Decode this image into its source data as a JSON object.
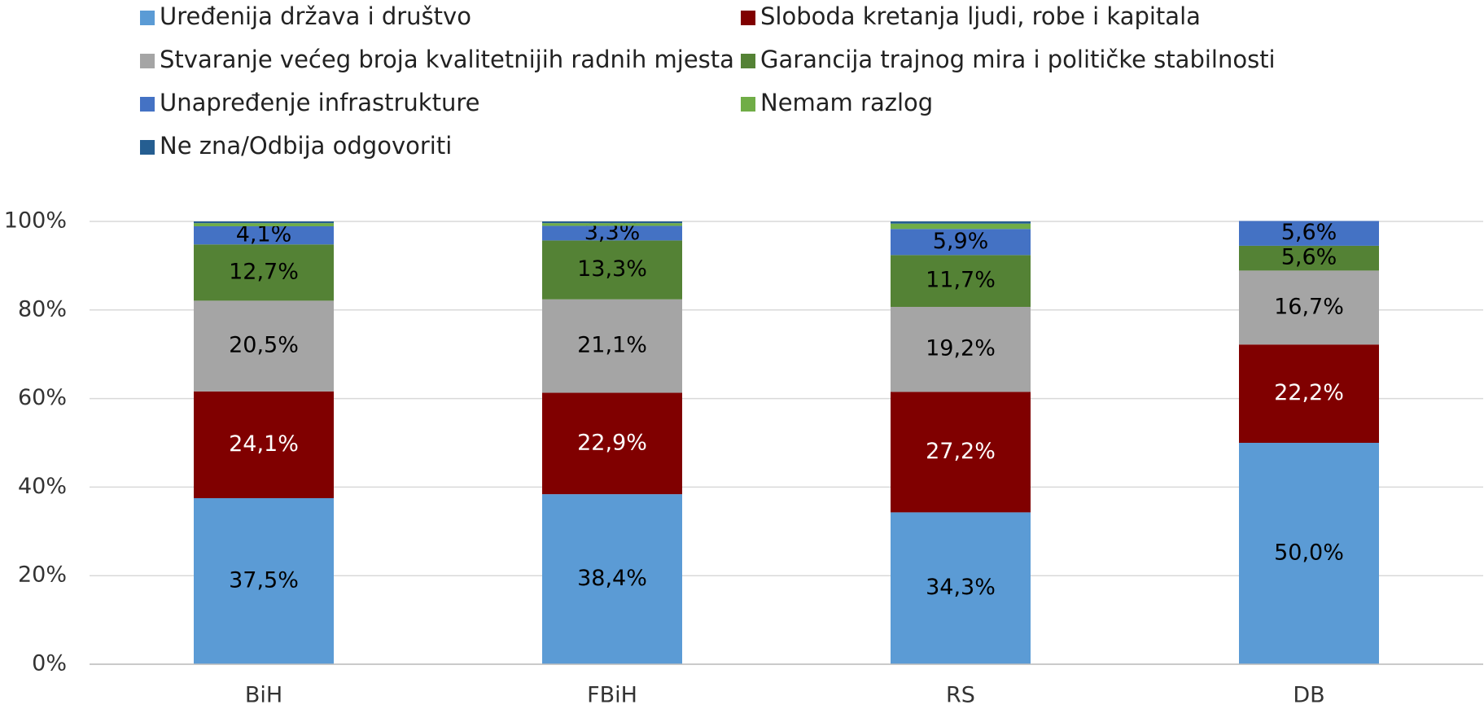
{
  "chart_data": {
    "type": "stacked_bar",
    "categories": [
      "BiH",
      "FBiH",
      "RS",
      "DB"
    ],
    "series": [
      {
        "name": "Uređenija država i društvo",
        "color": "#5b9bd5",
        "values": [
          37.5,
          38.4,
          34.3,
          50.0
        ],
        "value_labels": [
          "37,5%",
          "38,4%",
          "34,3%",
          "50,0%"
        ]
      },
      {
        "name": "Sloboda kretanja ljudi, robe i kapitala",
        "color": "#800000",
        "values": [
          24.1,
          22.9,
          27.2,
          22.2
        ],
        "value_labels": [
          "24,1%",
          "22,9%",
          "27,2%",
          "22,2%"
        ]
      },
      {
        "name": "Stvaranje većeg broja kvalitetnijih radnih mjesta",
        "color": "#a5a5a5",
        "values": [
          20.5,
          21.1,
          19.2,
          16.7
        ],
        "value_labels": [
          "20,5%",
          "21,1%",
          "19,2%",
          "16,7%"
        ]
      },
      {
        "name": "Garancija trajnog mira i političke stabilnosti",
        "color": "#548235",
        "values": [
          12.7,
          13.3,
          11.7,
          5.6
        ],
        "value_labels": [
          "12,7%",
          "13,3%",
          "11,7%",
          "5,6%"
        ]
      },
      {
        "name": "Unapređenje infrastrukture",
        "color": "#4472c4",
        "values": [
          4.1,
          3.3,
          5.9,
          5.6
        ],
        "value_labels": [
          "4,1%",
          "3,3%",
          "5,9%",
          "5,6%"
        ]
      },
      {
        "name": "Nemam razlog",
        "color": "#70ad47",
        "values": [
          0.7,
          0.6,
          1.2,
          0
        ],
        "value_labels": [
          null,
          null,
          null,
          null
        ]
      },
      {
        "name": "Ne zna/Odbija odgovoriti",
        "color": "#255e91",
        "values": [
          0.4,
          0.4,
          0.5,
          0
        ],
        "value_labels": [
          null,
          null,
          null,
          null
        ]
      }
    ],
    "ylim": [
      0,
      100
    ],
    "yticks": [
      {
        "value": 0,
        "label": "0%"
      },
      {
        "value": 20,
        "label": "20%"
      },
      {
        "value": 40,
        "label": "40%"
      },
      {
        "value": 60,
        "label": "60%"
      },
      {
        "value": 80,
        "label": "80%"
      },
      {
        "value": 100,
        "label": "100%"
      }
    ],
    "grid": true,
    "legend": "top"
  }
}
